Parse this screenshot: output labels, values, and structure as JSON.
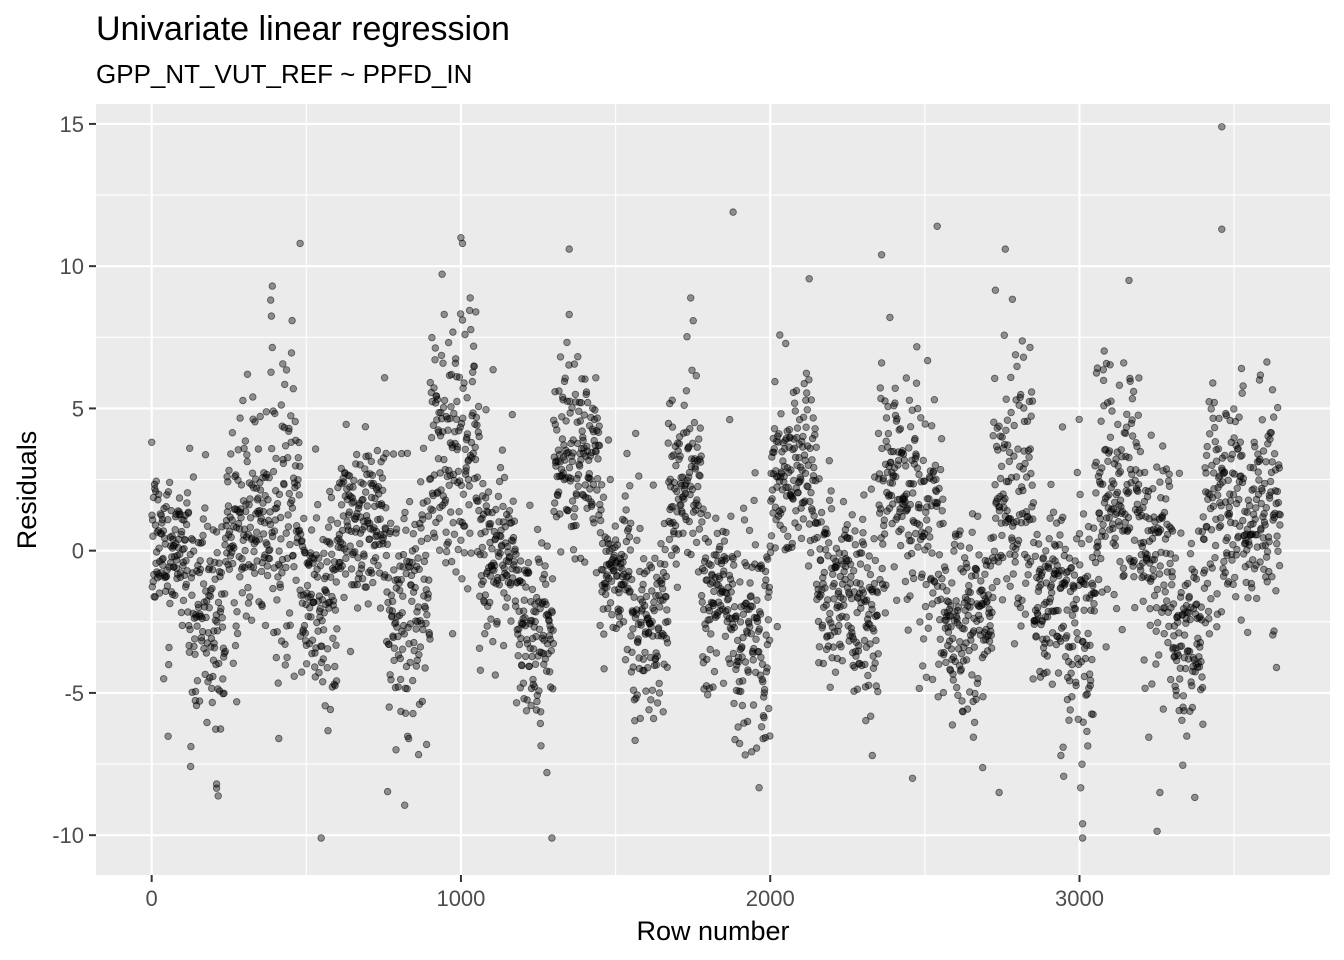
{
  "chart_data": {
    "type": "scatter",
    "title": "Univariate linear regression",
    "subtitle": "GPP_NT_VUT_REF ~ PPFD_IN",
    "xlabel": "Row number",
    "ylabel": "Residuals",
    "xlim": [
      -180,
      3810
    ],
    "ylim": [
      -11.4,
      15.7
    ],
    "x_ticks": [
      0,
      1000,
      2000,
      3000
    ],
    "y_ticks": [
      15,
      10,
      5,
      0,
      -5,
      -10
    ],
    "x_tick_labels": [
      "0",
      "1000",
      "2000",
      "3000"
    ],
    "y_tick_labels": [
      "15",
      "10",
      "5",
      "0",
      "-5",
      "-10"
    ],
    "grid": true,
    "point_color": "#000000",
    "point_alpha": 0.4,
    "n_points": 3650,
    "seasonal_segments": [
      {
        "x_start": 0,
        "x_end": 120,
        "center": 0.2,
        "spread": 1.3
      },
      {
        "x_start": 120,
        "x_end": 240,
        "center": -2.2,
        "spread": 2.0
      },
      {
        "x_start": 240,
        "x_end": 380,
        "center": 0.8,
        "spread": 1.6
      },
      {
        "x_start": 380,
        "x_end": 480,
        "center": 1.5,
        "spread": 2.8
      },
      {
        "x_start": 480,
        "x_end": 600,
        "center": -1.8,
        "spread": 1.8
      },
      {
        "x_start": 600,
        "x_end": 760,
        "center": 1.0,
        "spread": 1.6
      },
      {
        "x_start": 760,
        "x_end": 900,
        "center": -2.0,
        "spread": 1.8
      },
      {
        "x_start": 900,
        "x_end": 1060,
        "center": 3.5,
        "spread": 2.2
      },
      {
        "x_start": 1060,
        "x_end": 1180,
        "center": 0.0,
        "spread": 1.6
      },
      {
        "x_start": 1180,
        "x_end": 1300,
        "center": -2.8,
        "spread": 1.6
      },
      {
        "x_start": 1300,
        "x_end": 1450,
        "center": 3.5,
        "spread": 1.6
      },
      {
        "x_start": 1450,
        "x_end": 1550,
        "center": -0.5,
        "spread": 1.4
      },
      {
        "x_start": 1550,
        "x_end": 1670,
        "center": -2.5,
        "spread": 1.5
      },
      {
        "x_start": 1670,
        "x_end": 1780,
        "center": 2.2,
        "spread": 1.5
      },
      {
        "x_start": 1780,
        "x_end": 1880,
        "center": -1.5,
        "spread": 1.6
      },
      {
        "x_start": 1880,
        "x_end": 2000,
        "center": -3.0,
        "spread": 1.8
      },
      {
        "x_start": 2000,
        "x_end": 2150,
        "center": 2.8,
        "spread": 1.8
      },
      {
        "x_start": 2150,
        "x_end": 2260,
        "center": -1.5,
        "spread": 1.7
      },
      {
        "x_start": 2260,
        "x_end": 2350,
        "center": -2.3,
        "spread": 1.7
      },
      {
        "x_start": 2350,
        "x_end": 2480,
        "center": 2.5,
        "spread": 2.0
      },
      {
        "x_start": 2480,
        "x_end": 2560,
        "center": 0.0,
        "spread": 2.4
      },
      {
        "x_start": 2560,
        "x_end": 2720,
        "center": -2.6,
        "spread": 1.6
      },
      {
        "x_start": 2720,
        "x_end": 2850,
        "center": 2.5,
        "spread": 2.4
      },
      {
        "x_start": 2850,
        "x_end": 2960,
        "center": -1.5,
        "spread": 1.8
      },
      {
        "x_start": 2960,
        "x_end": 3050,
        "center": -2.2,
        "spread": 2.2
      },
      {
        "x_start": 3050,
        "x_end": 3200,
        "center": 2.0,
        "spread": 2.2
      },
      {
        "x_start": 3200,
        "x_end": 3300,
        "center": -0.5,
        "spread": 2.0
      },
      {
        "x_start": 3300,
        "x_end": 3400,
        "center": -3.0,
        "spread": 1.8
      },
      {
        "x_start": 3400,
        "x_end": 3650,
        "center": 1.5,
        "spread": 2.0
      }
    ],
    "notable_points": [
      {
        "x": 1000,
        "y": 11.0
      },
      {
        "x": 1005,
        "y": 10.8
      },
      {
        "x": 1880,
        "y": 11.9
      },
      {
        "x": 1350,
        "y": 10.6
      },
      {
        "x": 480,
        "y": 10.8
      },
      {
        "x": 2540,
        "y": 11.4
      },
      {
        "x": 2360,
        "y": 10.4
      },
      {
        "x": 2760,
        "y": 10.6
      },
      {
        "x": 3460,
        "y": 14.9
      },
      {
        "x": 3460,
        "y": 11.3
      },
      {
        "x": 3160,
        "y": 9.5
      },
      {
        "x": 390,
        "y": 9.3
      },
      {
        "x": 3010,
        "y": -9.6
      },
      {
        "x": 3010,
        "y": -10.1
      },
      {
        "x": 210,
        "y": -8.2
      },
      {
        "x": 210,
        "y": -8.35
      },
      {
        "x": 2740,
        "y": -8.5
      },
      {
        "x": 3260,
        "y": -8.5
      },
      {
        "x": 2460,
        "y": -8.0
      },
      {
        "x": 790,
        "y": -7.0
      },
      {
        "x": 2330,
        "y": -7.2
      },
      {
        "x": 2940,
        "y": -7.2
      }
    ]
  }
}
